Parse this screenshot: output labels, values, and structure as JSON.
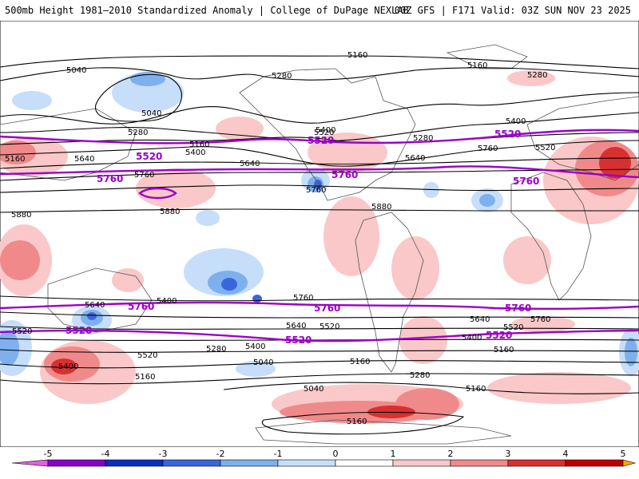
{
  "header": {
    "left_title": "500mb Height 1981–2010 Standardized Anomaly | College of DuPage NEXLAB",
    "right_title": "00Z GFS | F171 Valid: 03Z SUN NOV 23 2025"
  },
  "colors": {
    "contour": "#000000",
    "highlight_contour": "#9a00c8",
    "land_outline": "#555555",
    "neg_weak": "#c6defa",
    "neg_mid": "#7fb0ee",
    "neg_strong": "#3a66db",
    "pos_weak": "#fac8c8",
    "pos_mid": "#f08a8a",
    "pos_strong": "#d83030"
  },
  "contour_labels": {
    "black": [
      "5160",
      "5160",
      "5280",
      "5040",
      "5280",
      "5040",
      "5280",
      "5400",
      "5520",
      "5160",
      "5400",
      "5280",
      "5400",
      "5520",
      "5640",
      "5640",
      "5640",
      "5880",
      "5880",
      "5880",
      "5760",
      "5160",
      "5760",
      "5760",
      "5640",
      "5520",
      "5280",
      "5400",
      "5520",
      "5040",
      "5160",
      "5280",
      "5520",
      "5400",
      "5640",
      "5760",
      "5640",
      "5520",
      "5760",
      "5400",
      "5160",
      "5400",
      "5160",
      "5040",
      "5160",
      "5160"
    ],
    "purple": [
      "5520",
      "5520",
      "5520",
      "5760",
      "5760",
      "5760",
      "5760",
      "5760",
      "5760",
      "5520",
      "5520",
      "5520"
    ]
  },
  "colorbar": {
    "ticks": [
      "-5",
      "-4",
      "-3",
      "-2",
      "-1",
      "0",
      "1",
      "2",
      "3",
      "4",
      "5"
    ],
    "colors": [
      "#e060e0",
      "#8a00c8",
      "#0a2dbd",
      "#3a66db",
      "#7fb0ee",
      "#c6defa",
      "#ffffff",
      "#fac8c8",
      "#f08a8a",
      "#d83030",
      "#c00000",
      "#ffa800"
    ]
  }
}
